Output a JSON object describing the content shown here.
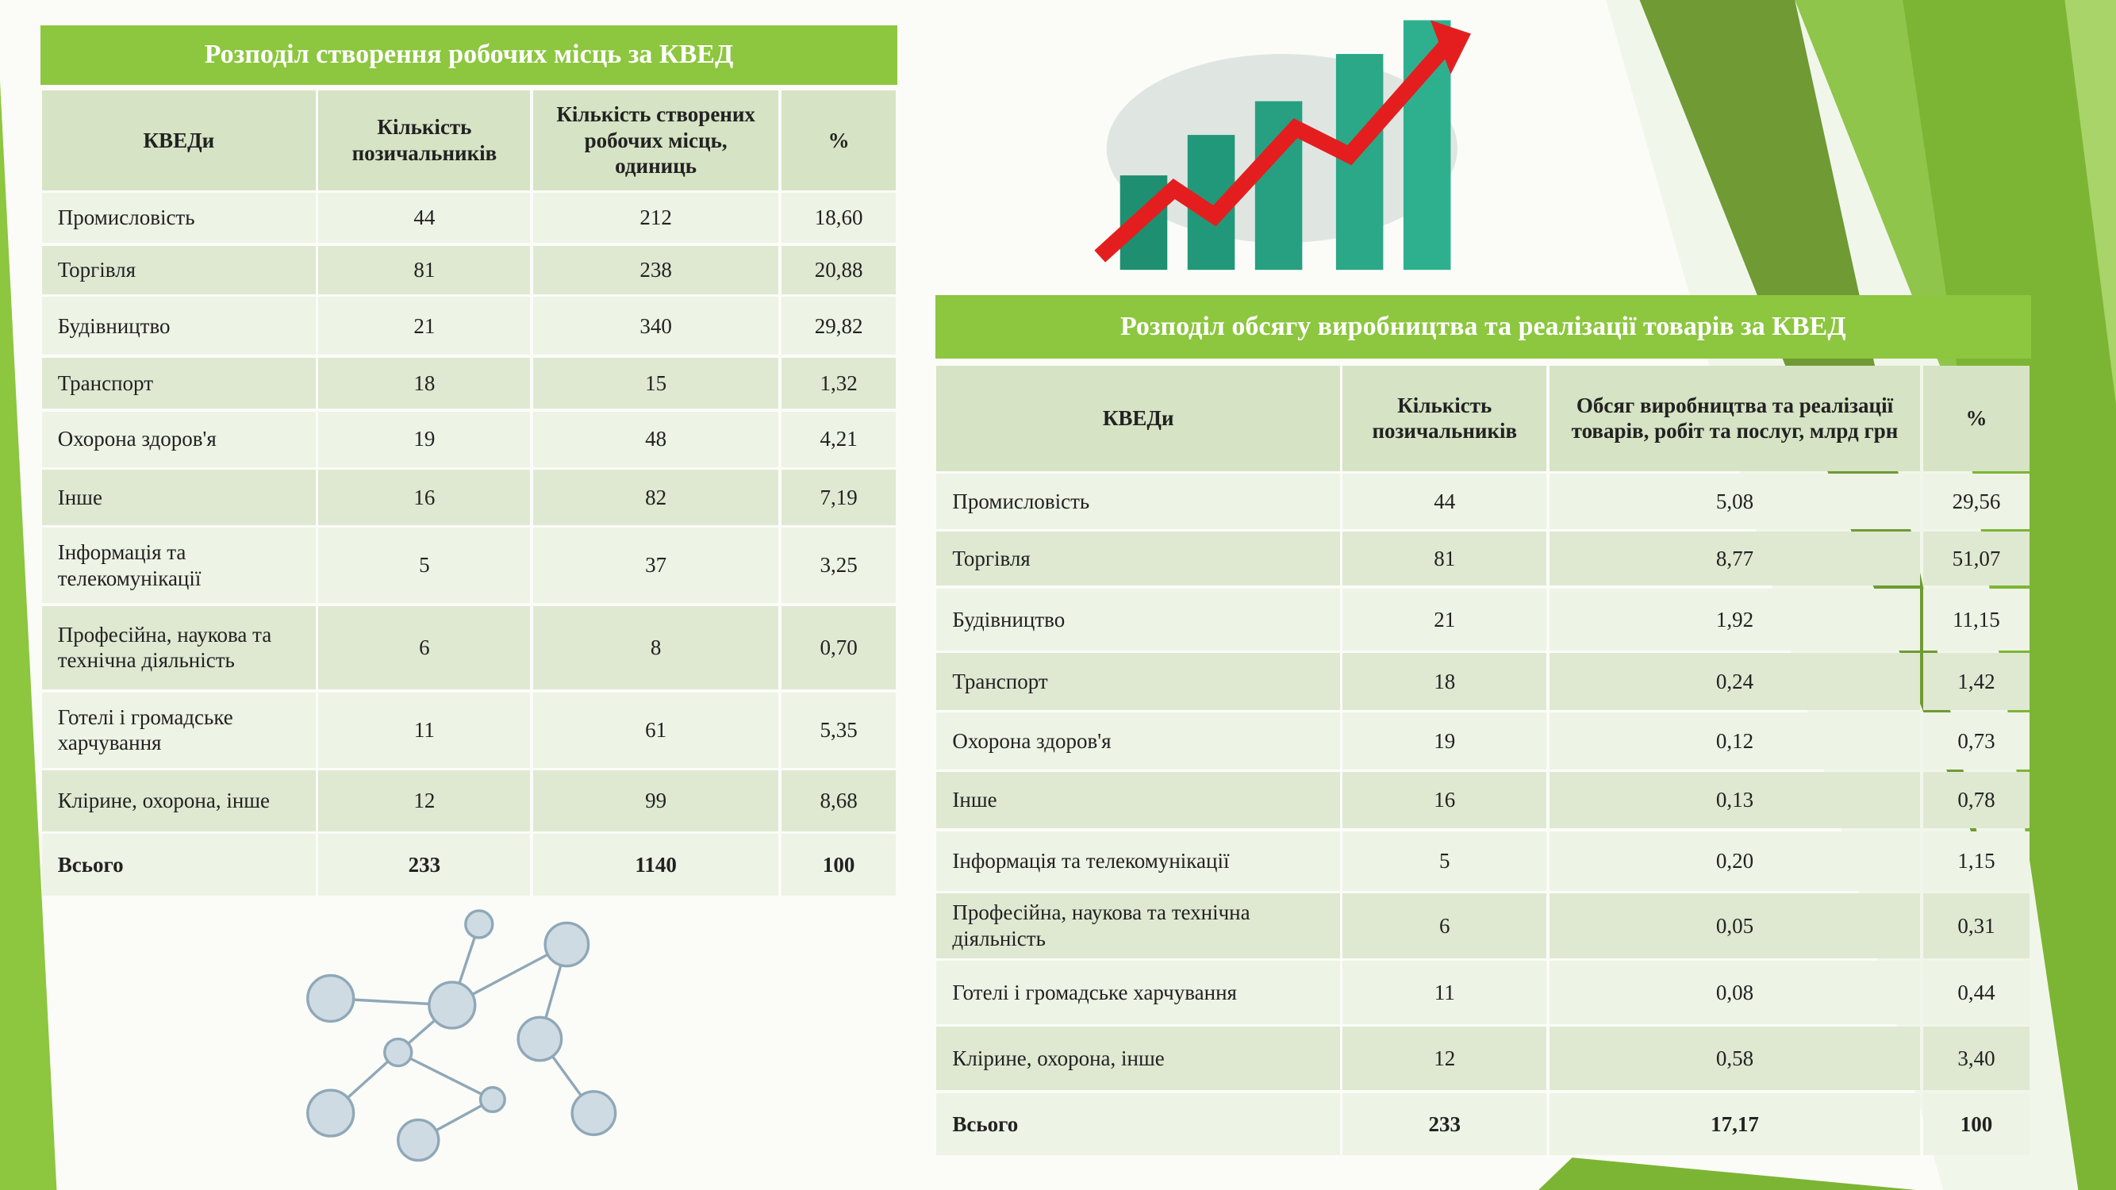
{
  "left": {
    "title": "Розподіл створення робочих місць за КВЕД",
    "header": [
      "КВЕДи",
      "Кількість позичальників",
      "Кількість створених робочих місць, одиниць",
      "%"
    ],
    "rows": [
      [
        "Промисловість",
        "44",
        "212",
        "18,60"
      ],
      [
        "Торгівля",
        "81",
        "238",
        "20,88"
      ],
      [
        "Будівництво",
        "21",
        "340",
        "29,82"
      ],
      [
        "Транспорт",
        "18",
        "15",
        "1,32"
      ],
      [
        "Охорона здоров'я",
        "19",
        "48",
        "4,21"
      ],
      [
        "Інше",
        "16",
        "82",
        "7,19"
      ],
      [
        "Інформація та телекомунікації",
        "5",
        "37",
        "3,25"
      ],
      [
        "Професійна, наукова та технічна діяльність",
        "6",
        "8",
        "0,70"
      ],
      [
        "Готелі і громадське харчування",
        "11",
        "61",
        "5,35"
      ],
      [
        "Клірине, охорона, інше",
        "12",
        "99",
        "8,68"
      ]
    ],
    "total": [
      "Всього",
      "233",
      "1140",
      "100"
    ]
  },
  "right": {
    "title": "Розподіл обсягу виробництва та реалізації товарів за КВЕД",
    "header": [
      "КВЕДи",
      "Кількість позичальників",
      "Обсяг виробництва та реалізації товарів, робіт та послуг, млрд грн",
      "%"
    ],
    "rows": [
      [
        "Промисловість",
        "44",
        "5,08",
        "29,56"
      ],
      [
        "Торгівля",
        "81",
        "8,77",
        "51,07"
      ],
      [
        "Будівництво",
        "21",
        "1,92",
        "11,15"
      ],
      [
        "Транспорт",
        "18",
        "0,24",
        "1,42"
      ],
      [
        "Охорона здоров'я",
        "19",
        "0,12",
        "0,73"
      ],
      [
        "Інше",
        "16",
        "0,13",
        "0,78"
      ],
      [
        "Інформація та телекомунікації",
        "5",
        "0,20",
        "1,15"
      ],
      [
        "Професійна, наукова та технічна діяльність",
        "6",
        "0,05",
        "0,31"
      ],
      [
        "Готелі і громадське харчування",
        "11",
        "0,08",
        "0,44"
      ],
      [
        "Клірине, охорона, інше",
        "12",
        "0,58",
        "3,40"
      ]
    ],
    "total": [
      "Всього",
      "233",
      "17,17",
      "100"
    ]
  }
}
